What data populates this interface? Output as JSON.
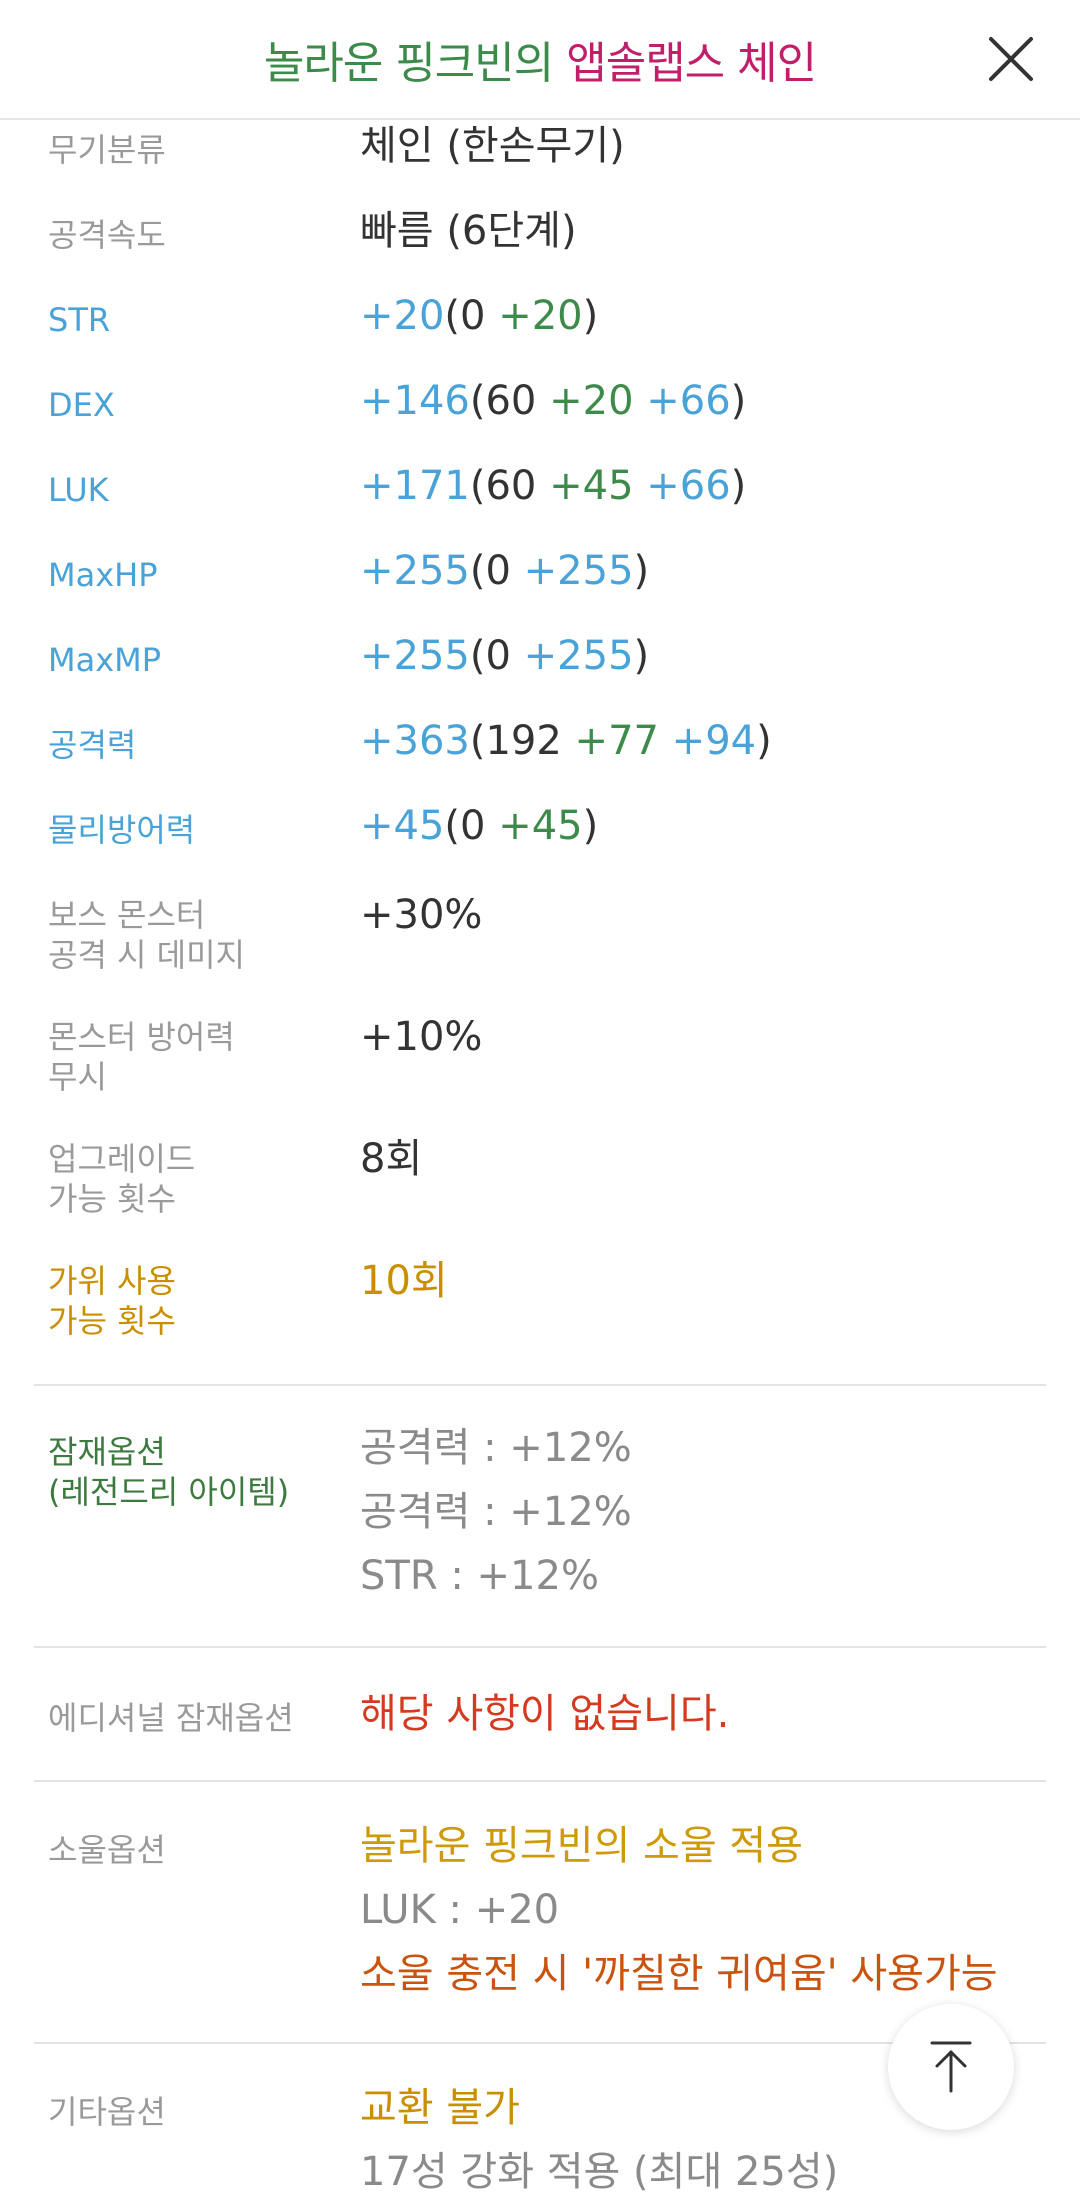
{
  "header": {
    "title_prefix": "놀라운 핑크빈의 ",
    "title_name": "앱솔랩스 체인",
    "close_icon": "close-icon"
  },
  "stats": [
    {
      "label": "무기분류",
      "value": "체인 (한손무기)"
    },
    {
      "label": "공격속도",
      "value": "빠름 (6단계)"
    },
    {
      "label": "STR",
      "total": "+20",
      "open": "(",
      "base": "0 ",
      "bonus1": "+20",
      "bonus2": "",
      "close": ")"
    },
    {
      "label": "DEX",
      "total": "+146",
      "open": "(",
      "base": "60 ",
      "bonus1": "+20",
      "bonus2": " +66",
      "close": ")"
    },
    {
      "label": "LUK",
      "total": "+171",
      "open": "(",
      "base": "60 ",
      "bonus1": "+45",
      "bonus2": " +66",
      "close": ")"
    },
    {
      "label": "MaxHP",
      "total": "+255",
      "open": "(",
      "base": "0 ",
      "bonus1": "",
      "bonus2": "+255",
      "close": ")"
    },
    {
      "label": "MaxMP",
      "total": "+255",
      "open": "(",
      "base": "0 ",
      "bonus1": "",
      "bonus2": "+255",
      "close": ")"
    },
    {
      "label": "공격력",
      "total": "+363",
      "open": "(",
      "base": "192 ",
      "bonus1": "+77",
      "bonus2": " +94",
      "close": ")"
    },
    {
      "label": "물리방어력",
      "total": "+45",
      "open": "(",
      "base": "0 ",
      "bonus1": "+45",
      "bonus2": "",
      "close": ")"
    },
    {
      "label_line1": "보스 몬스터",
      "label_line2": "공격 시 데미지",
      "value": "+30%"
    },
    {
      "label_line1": "몬스터 방어력",
      "label_line2": "무시",
      "value": "+10%"
    },
    {
      "label_line1": "업그레이드",
      "label_line2": "가능 횟수",
      "value": "8회"
    },
    {
      "label_line1": "가위 사용",
      "label_line2": "가능 횟수",
      "value": "10회"
    }
  ],
  "potential": {
    "label_line1": "잠재옵션",
    "label_line2": "(레전드리 아이템)",
    "lines": [
      "공격력 : +12%",
      "공격력 : +12%",
      "STR : +12%"
    ]
  },
  "additional": {
    "label": "에디셔널 잠재옵션",
    "value": "해당 사항이 없습니다."
  },
  "soul": {
    "label": "소울옵션",
    "line1": "놀라운 핑크빈의 소울 적용",
    "line2": "LUK : +20",
    "line3": "소울 충전 시 '까칠한 귀여움' 사용가능"
  },
  "etc": {
    "label": "기타옵션",
    "line1": "교환 불가",
    "line2": "17성 강화 적용 (최대 25성)"
  },
  "scroll_top": {
    "icon": "arrow-up-icon"
  },
  "colors": {
    "label_gray": "#9a9a9a",
    "stat_blue": "#4aa3d8",
    "bonus_green": "#3d8b4a",
    "gold": "#c98f00",
    "red": "#d33a1e",
    "title_pink": "#c21f6b"
  }
}
